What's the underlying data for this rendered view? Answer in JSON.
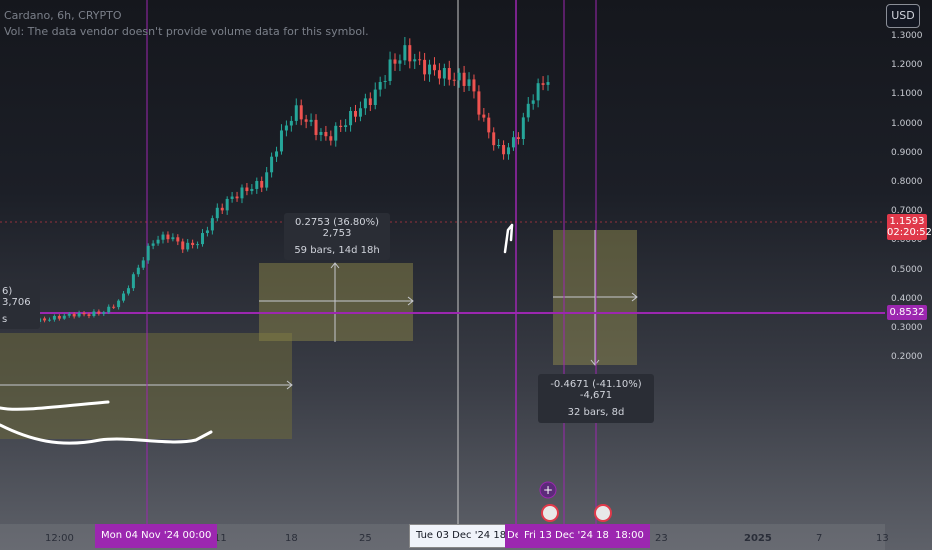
{
  "legend": {
    "symbol_line": "Cardano, 6h, CRYPTO",
    "vol_line": "Vol: The data vendor doesn't provide volume data for this symbol."
  },
  "currency_button": "USD",
  "y_axis_ticks": [
    "1.3000",
    "1.2000",
    "1.1000",
    "1.0000",
    "0.9000",
    "0.8000",
    "0.7000",
    "0.6000",
    "0.5000",
    "0.4000",
    "0.3000",
    "0.2000"
  ],
  "price_label": {
    "value": "1.1593",
    "countdown": "02:20:52",
    "color": "#e0394a"
  },
  "line_label": {
    "value": "0.8532",
    "color": "#9c27b0"
  },
  "x_axis_ticks": [
    "12:00",
    "11",
    "18",
    "25",
    "23",
    "2025",
    "7",
    "13"
  ],
  "x_tags": [
    {
      "text": "Mon 04 Nov '24   00:00",
      "color": "#9c27b0"
    },
    {
      "text": "Tue 03 Dec '24   18:00",
      "color": "#f0f3fa"
    },
    {
      "text": "Dec",
      "color": "#9c27b0"
    },
    {
      "text": "Fri 13 Dec '24   18:00",
      "color": "#9c27b0"
    },
    {
      "text": "18:00",
      "color": "#9c27b0"
    }
  ],
  "measures": [
    {
      "line1": "0.2753 (36.80%) 2,753",
      "line2": "59 bars, 14d 18h"
    },
    {
      "line1": "-0.4671 (-41.10%) -4,671",
      "line2": "32 bars, 8d"
    },
    {
      "line1": "6) 3,706",
      "line2": "s"
    }
  ],
  "chart_data": {
    "type": "candlestick",
    "series_name": "Cardano, 6h, CRYPTO",
    "y_range": [
      0.15,
      1.35
    ],
    "y_scale": "log",
    "close_approx": [
      0.34,
      0.33,
      0.33,
      0.34,
      0.35,
      0.35,
      0.36,
      0.4,
      0.5,
      0.6,
      0.62,
      0.58,
      0.6,
      0.7,
      0.75,
      0.78,
      0.8,
      0.95,
      1.05,
      1.0,
      0.95,
      1.0,
      1.05,
      1.1,
      1.2,
      1.25,
      1.2,
      1.18,
      1.16,
      1.15,
      1.0,
      0.9,
      0.95,
      1.1,
      1.1593
    ],
    "current_price": 1.1593,
    "horizontal_line": 0.8532,
    "colors": {
      "up": "#26a69a",
      "down": "#ef5350",
      "highlight": "#9c27b0"
    }
  }
}
